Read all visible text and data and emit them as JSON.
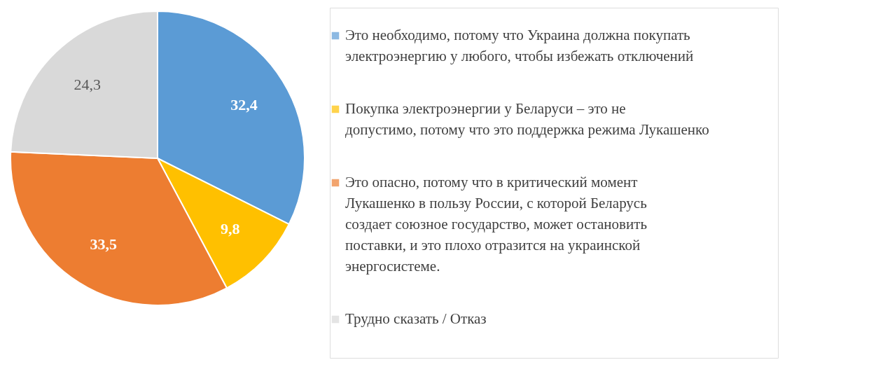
{
  "chart_data": {
    "type": "pie",
    "categories": [
      "Это необходимо, потому что Украина должна покупать электроэнергию у любого, чтобы избежать отключений",
      "Покупка электроэнергии у Беларуси – это не допустимо, потому что это поддержка режима Лукашенко",
      "Это опасно, потому что в критический момент Лукашенко в пользу России, с которой Беларусь создает союзное государство, может остановить поставки, и это плохо отразится на украинской энергосистеме.",
      "Трудно сказать / Отказ"
    ],
    "values": [
      32.4,
      9.8,
      33.5,
      24.3
    ],
    "value_labels": [
      "32,4",
      "9,8",
      "33,5",
      "24,3"
    ],
    "colors": [
      "#5b9bd5",
      "#ffc000",
      "#ed7d31",
      "#d9d9d9"
    ],
    "legend": "right"
  }
}
